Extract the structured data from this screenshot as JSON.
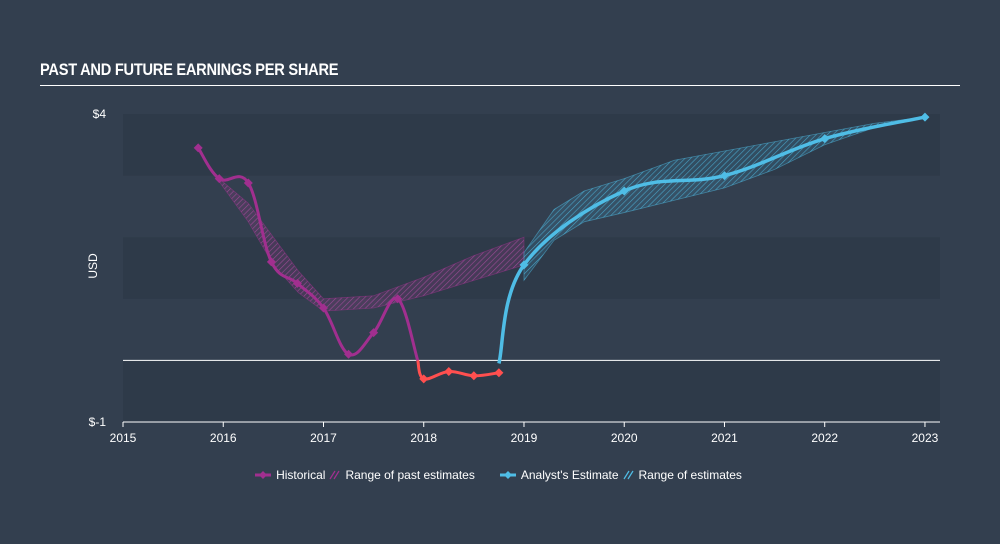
{
  "title": "PAST AND FUTURE EARNINGS PER SHARE",
  "colors": {
    "background": "#333f4f",
    "band_dark": "#2e3a49",
    "historical": "#a12f8f",
    "historical_negative": "#ff4f4f",
    "estimate": "#4fbde6",
    "past_range_fill": "#8e3a85",
    "estimate_range_fill": "#3e90b4",
    "zero_line": "#ffffff"
  },
  "legend": {
    "historical": "Historical",
    "past_range": "Range of past estimates",
    "estimate": "Analyst's Estimate",
    "estimate_range": "Range of estimates"
  },
  "chart_data": {
    "type": "line",
    "ylabel": "USD",
    "ylim": [
      -1,
      4
    ],
    "xlim": [
      2015,
      2023.15
    ],
    "y_tick_labels": [
      "$4",
      "$-1"
    ],
    "x_tick_labels": [
      "2015",
      "2016",
      "2017",
      "2018",
      "2019",
      "2020",
      "2021",
      "2022",
      "2023"
    ],
    "series": [
      {
        "name": "Historical",
        "x": [
          2015.75,
          2015.96,
          2016.25,
          2016.48,
          2016.74,
          2017.0,
          2017.25,
          2017.5,
          2017.74,
          2018.0,
          2018.25,
          2018.5,
          2018.75
        ],
        "y": [
          3.45,
          2.95,
          2.88,
          1.6,
          1.25,
          0.85,
          0.1,
          0.45,
          1.0,
          -0.3,
          -0.18,
          -0.25,
          -0.2
        ]
      },
      {
        "name": "Analyst's Estimate",
        "x": [
          2018.75,
          2019.0,
          2020.0,
          2021.0,
          2022.0,
          2023.0
        ],
        "y": [
          -0.05,
          1.55,
          2.75,
          3.0,
          3.6,
          3.95
        ]
      }
    ],
    "past_estimate_range": {
      "name": "Range of past estimates",
      "x": [
        2015.96,
        2016.25,
        2016.5,
        2016.75,
        2017.0,
        2017.5,
        2018.0,
        2018.5,
        2019.0
      ],
      "upper": [
        2.95,
        2.55,
        2.0,
        1.45,
        1.0,
        1.05,
        1.35,
        1.7,
        2.0
      ],
      "lower": [
        2.9,
        2.25,
        1.55,
        1.1,
        0.8,
        0.85,
        1.05,
        1.3,
        1.55
      ]
    },
    "estimate_range": {
      "name": "Range of estimates",
      "x": [
        2019.0,
        2019.3,
        2019.6,
        2020.0,
        2020.5,
        2021.0,
        2021.5,
        2022.0,
        2022.5,
        2023.0
      ],
      "upper": [
        1.75,
        2.45,
        2.75,
        2.95,
        3.25,
        3.4,
        3.55,
        3.7,
        3.85,
        3.95
      ],
      "lower": [
        1.3,
        1.95,
        2.25,
        2.4,
        2.6,
        2.8,
        3.1,
        3.5,
        3.78,
        3.95
      ]
    },
    "grid": "alternating horizontal bands",
    "legend_position": "bottom-center"
  }
}
